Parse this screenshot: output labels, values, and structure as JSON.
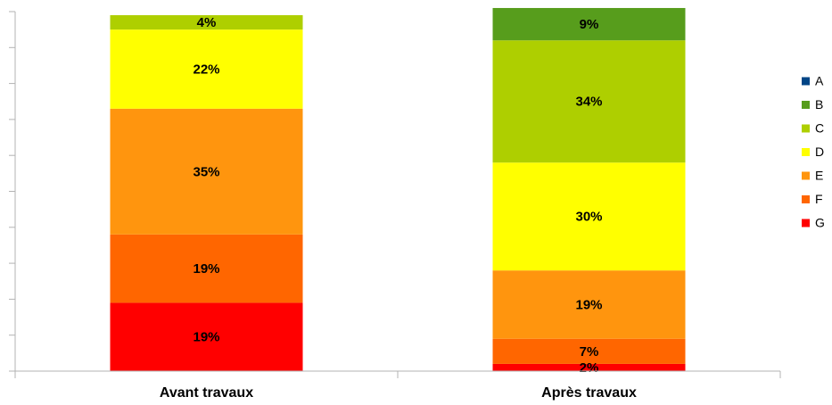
{
  "chart_data": {
    "type": "stacked_bar",
    "categories": [
      "Avant travaux",
      "Après travaux"
    ],
    "ylim": [
      0,
      100
    ],
    "yticks": [
      0,
      10,
      20,
      30,
      40,
      50,
      60,
      70,
      80,
      90,
      100
    ],
    "series": [
      {
        "name": "A",
        "color": "#004586",
        "values": [
          0,
          0
        ],
        "value_labels": [
          null,
          null
        ]
      },
      {
        "name": "B",
        "color": "#579d1c",
        "values": [
          0,
          9
        ],
        "value_labels": [
          null,
          "9%"
        ]
      },
      {
        "name": "C",
        "color": "#aecf00",
        "values": [
          4,
          34
        ],
        "value_labels": [
          "4%",
          "34%"
        ]
      },
      {
        "name": "D",
        "color": "#ffff00",
        "values": [
          22,
          30
        ],
        "value_labels": [
          "22%",
          "30%"
        ]
      },
      {
        "name": "E",
        "color": "#ff950e",
        "values": [
          35,
          19
        ],
        "value_labels": [
          "35%",
          "19%"
        ]
      },
      {
        "name": "F",
        "color": "#ff6600",
        "values": [
          19,
          7
        ],
        "value_labels": [
          "19%",
          "7%"
        ]
      },
      {
        "name": "G",
        "color": "#ff0000",
        "values": [
          19,
          2
        ],
        "value_labels": [
          "19%",
          "2%"
        ]
      }
    ]
  }
}
